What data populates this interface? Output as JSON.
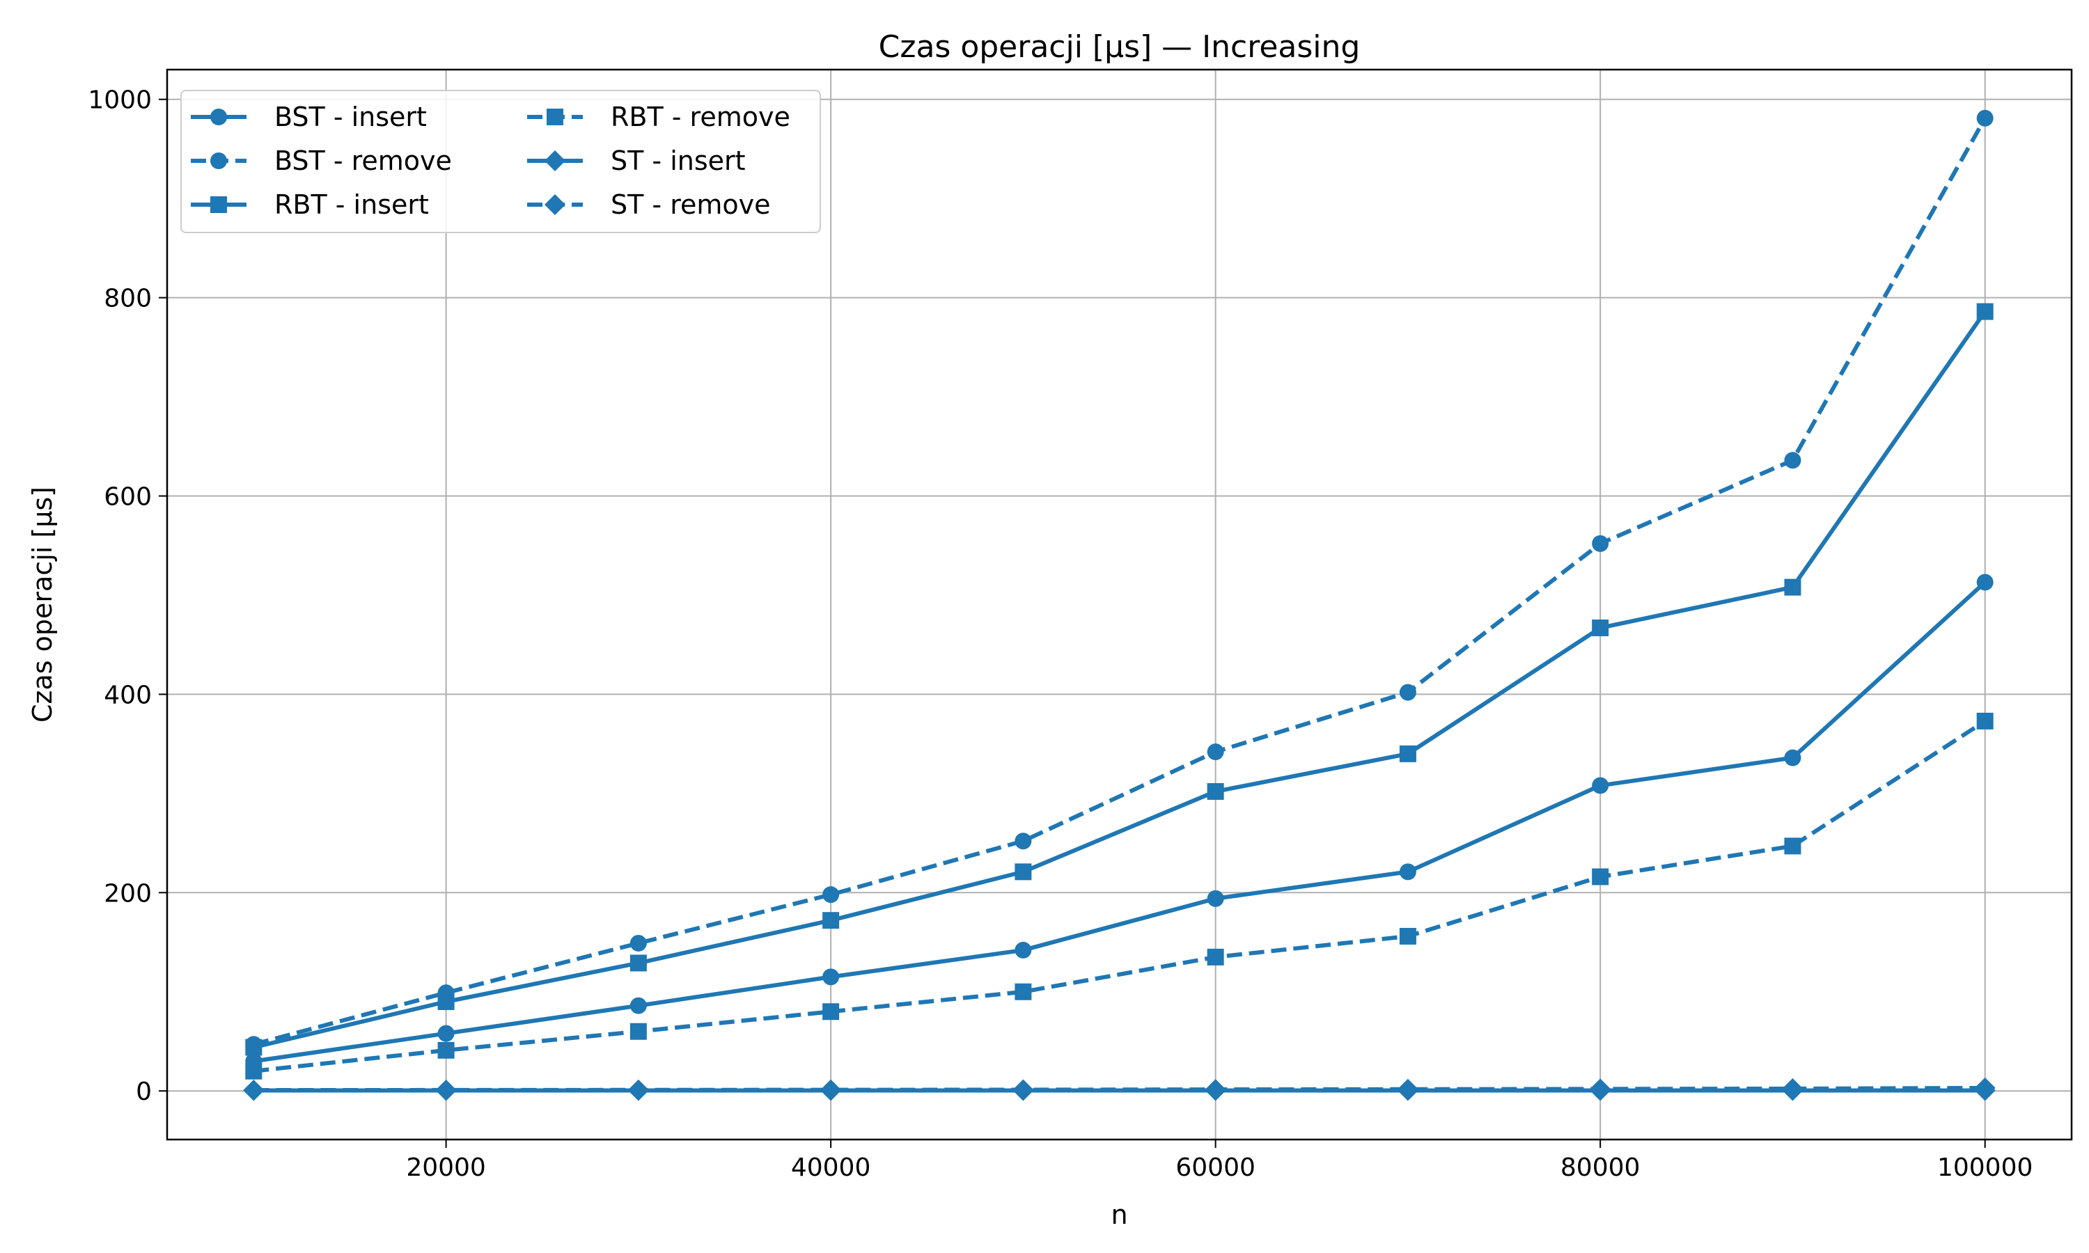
{
  "chart_data": {
    "type": "line",
    "title": "Czas operacji [µs] — Increasing",
    "xlabel": "n",
    "ylabel": "Czas operacji [µs]",
    "xlim": [
      5500,
      104500
    ],
    "ylim": [
      -49,
      1030
    ],
    "grid": true,
    "legend_position": "upper-left",
    "legend_columns": 2,
    "color": "#1f77b4",
    "x": [
      10000,
      20000,
      30000,
      40000,
      50000,
      60000,
      70000,
      80000,
      90000,
      100000
    ],
    "x_ticks": [
      20000,
      40000,
      60000,
      80000,
      100000
    ],
    "x_tick_labels": [
      "20000",
      "40000",
      "60000",
      "80000",
      "100000"
    ],
    "y_ticks": [
      0,
      200,
      400,
      600,
      800,
      1000
    ],
    "y_tick_labels": [
      "0",
      "200",
      "400",
      "600",
      "800",
      "1000"
    ],
    "series": [
      {
        "name": "BST - insert",
        "line": "solid",
        "marker": "circle",
        "values": [
          30,
          58,
          86,
          115,
          142,
          194,
          221,
          308,
          336,
          513
        ]
      },
      {
        "name": "BST - remove",
        "line": "dashed",
        "marker": "circle",
        "values": [
          47,
          99,
          149,
          198,
          252,
          342,
          402,
          552,
          636,
          981
        ]
      },
      {
        "name": "RBT - insert",
        "line": "solid",
        "marker": "square",
        "values": [
          44,
          90,
          129,
          172,
          221,
          302,
          340,
          467,
          508,
          786
        ]
      },
      {
        "name": "RBT - remove",
        "line": "dashed",
        "marker": "square",
        "values": [
          20,
          41,
          60,
          80,
          100,
          135,
          156,
          216,
          247,
          373
        ]
      },
      {
        "name": "ST - insert",
        "line": "solid",
        "marker": "diamond",
        "values": [
          0.5,
          0.5,
          0.5,
          0.5,
          0.5,
          0.5,
          0.5,
          0.5,
          0.5,
          0.5
        ]
      },
      {
        "name": "ST - remove",
        "line": "dashed",
        "marker": "diamond",
        "values": [
          0.8,
          0.9,
          1.0,
          1.1,
          1.2,
          1.5,
          1.7,
          2.0,
          2.3,
          3.0
        ]
      }
    ]
  }
}
